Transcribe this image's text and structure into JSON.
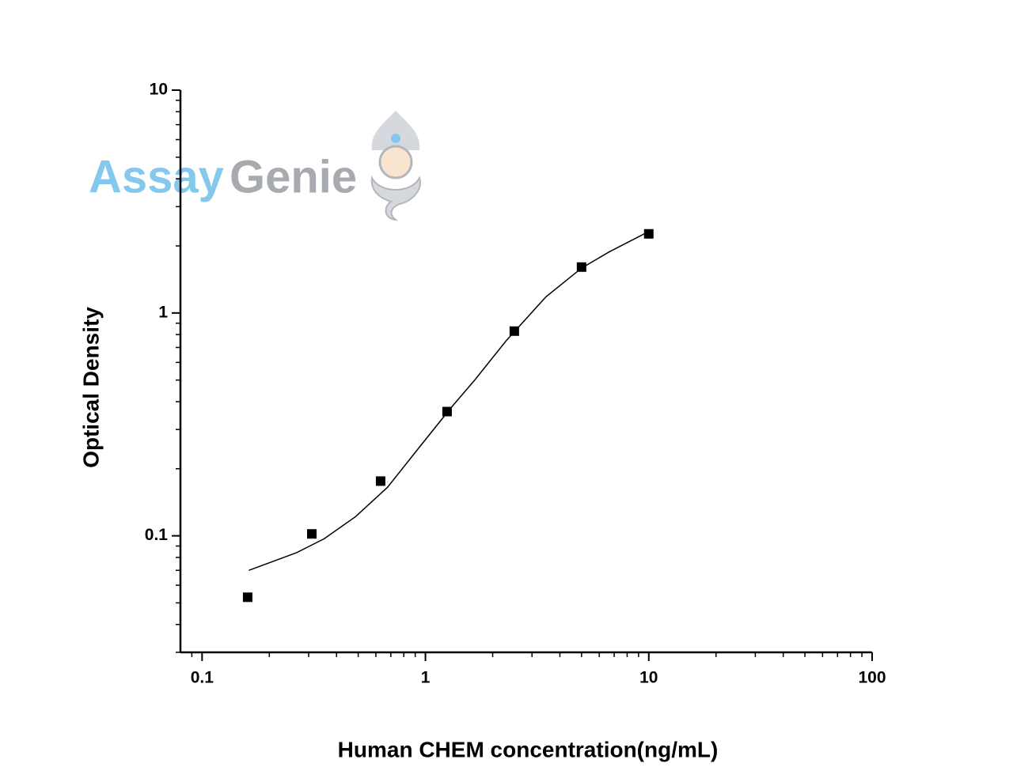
{
  "chart_data": {
    "type": "scatter",
    "watermark": [
      "Assay",
      "Genie"
    ],
    "xlabel": "Human CHEM concentration(ng/mL)",
    "ylabel": "Optical Density",
    "xscale": "log",
    "yscale": "log",
    "xlim": [
      0.08,
      100
    ],
    "ylim": [
      0.03,
      10
    ],
    "xticks": [
      0.1,
      1,
      10,
      100
    ],
    "yticks": [
      0.1,
      1,
      10
    ],
    "xminorticks": [
      0.09,
      0.2,
      0.3,
      0.4,
      0.5,
      0.6,
      0.7,
      0.8,
      0.9,
      2,
      3,
      4,
      5,
      6,
      7,
      8,
      9,
      20,
      30,
      40,
      50,
      60,
      70,
      80,
      90
    ],
    "yminorticks": [
      0.03,
      0.04,
      0.05,
      0.06,
      0.07,
      0.08,
      0.09,
      0.2,
      0.3,
      0.4,
      0.5,
      0.6,
      0.7,
      0.8,
      0.9,
      2,
      3,
      4,
      5,
      6,
      7,
      8,
      9
    ],
    "series": [
      {
        "kind": "points",
        "color": "#000000",
        "x": [
          0.16,
          0.31,
          0.63,
          1.25,
          2.5,
          5,
          10
        ],
        "values": [
          0.053,
          0.102,
          0.176,
          0.361,
          0.829,
          1.607,
          2.265
        ]
      },
      {
        "kind": "curve",
        "color": "#000000",
        "x": [
          0.162,
          0.265,
          0.352,
          0.487,
          0.676,
          0.937,
          1.3,
          1.66,
          2.3,
          3.46,
          5.0,
          6.65,
          10
        ],
        "values": [
          0.07,
          0.084,
          0.097,
          0.122,
          0.165,
          0.249,
          0.375,
          0.499,
          0.751,
          1.18,
          1.59,
          1.88,
          2.32
        ]
      }
    ]
  }
}
